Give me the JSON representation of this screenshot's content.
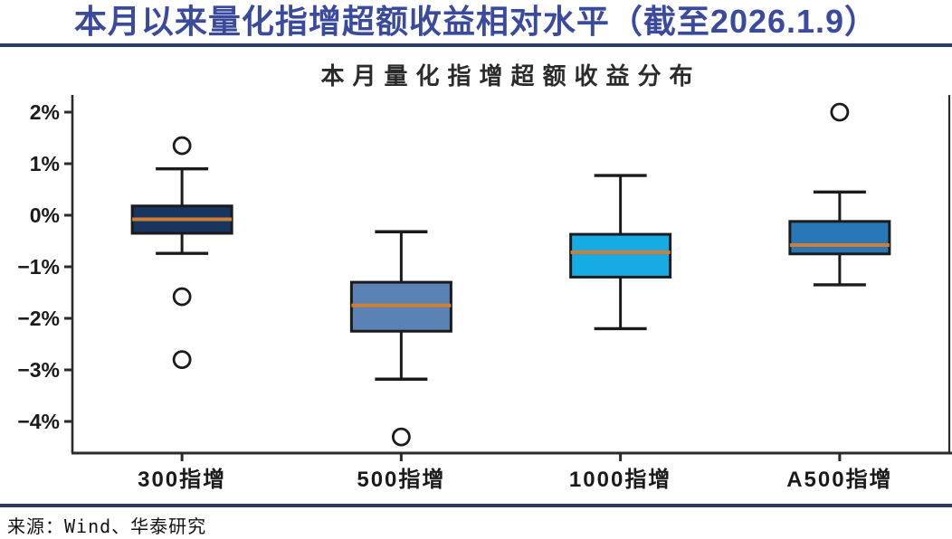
{
  "header": {
    "title": "本月以来量化指增超额收益相对水平（截至2026.1.9）",
    "text_color": "#3a4a9c",
    "rule_color": "#2c3c62"
  },
  "chart_data": {
    "type": "box",
    "title": "本月量化指增超额收益分布",
    "unit": "%",
    "categories": [
      "300指增",
      "500指增",
      "1000指增",
      "A500指增"
    ],
    "ylim": [
      -4.6,
      2.3
    ],
    "yticks": [
      2,
      1,
      0,
      -1,
      -2,
      -3,
      -4
    ],
    "ytick_labels": [
      "2%",
      "1%",
      "0%",
      "−1%",
      "−2%",
      "−3%",
      "−4%"
    ],
    "grid": false,
    "legend": "none",
    "boxes": [
      {
        "category": "300指增",
        "whisker_low": -0.74,
        "q1": -0.35,
        "median": -0.08,
        "q3": 0.18,
        "whisker_high": 0.9,
        "outliers": [
          1.35,
          -1.58,
          -2.8
        ],
        "color": "#17355e"
      },
      {
        "category": "500指增",
        "whisker_low": -3.18,
        "q1": -2.25,
        "median": -1.75,
        "q3": -1.3,
        "whisker_high": -0.32,
        "outliers": [
          -4.3
        ],
        "color": "#5b82b5"
      },
      {
        "category": "1000指增",
        "whisker_low": -2.2,
        "q1": -1.2,
        "median": -0.72,
        "q3": -0.37,
        "whisker_high": 0.77,
        "outliers": [],
        "color": "#16abe3"
      },
      {
        "category": "A500指增",
        "whisker_low": -1.35,
        "q1": -0.75,
        "median": -0.58,
        "q3": -0.12,
        "whisker_high": 0.45,
        "outliers": [
          2.0
        ],
        "color": "#2878b8"
      }
    ],
    "median_color": "#cf7f35",
    "box_edge_color": "#1b1b1b",
    "axis_color": "#2b2b2b",
    "tick_label_color": "#1a1a1a"
  },
  "footer": {
    "source": "来源：Wind、华泰研究",
    "rule_color": "#2c3c62"
  }
}
